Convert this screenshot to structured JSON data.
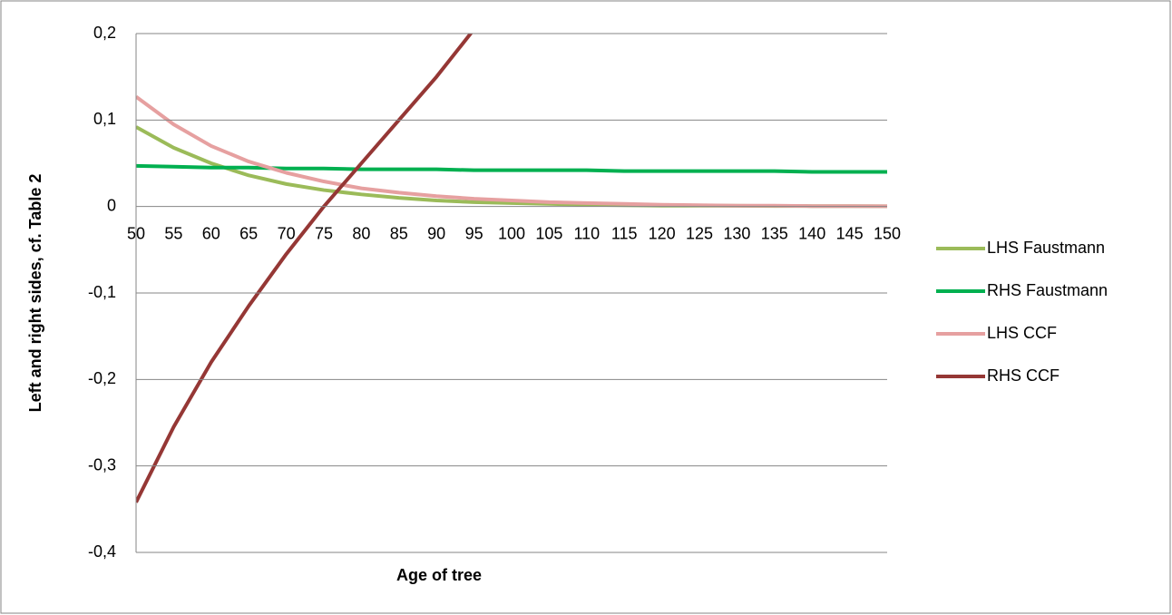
{
  "chart_data": {
    "type": "line",
    "x_label": "Age of tree",
    "y_label": "Left and right sides, cf. Table 2",
    "categories": [
      "50",
      "55",
      "60",
      "65",
      "70",
      "75",
      "80",
      "85",
      "90",
      "95",
      "100",
      "105",
      "110",
      "115",
      "120",
      "125",
      "130",
      "135",
      "140",
      "145",
      "150"
    ],
    "series": [
      {
        "name": "LHS Faustmann",
        "color": "#9bbb59",
        "values": [
          0.092,
          0.068,
          0.05,
          0.036,
          0.026,
          0.019,
          0.014,
          0.01,
          0.007,
          0.005,
          0.004,
          0.003,
          0.002,
          0.0015,
          0.001,
          0.001,
          0.0008,
          0.0006,
          0.0005,
          0.0004,
          0.0003
        ]
      },
      {
        "name": "RHS Faustmann",
        "color": "#00b050",
        "values": [
          0.047,
          0.046,
          0.045,
          0.045,
          0.044,
          0.044,
          0.043,
          0.043,
          0.043,
          0.042,
          0.042,
          0.042,
          0.042,
          0.041,
          0.041,
          0.041,
          0.041,
          0.041,
          0.04,
          0.04,
          0.04
        ]
      },
      {
        "name": "LHS CCF",
        "color": "#e6a0a0",
        "values": [
          0.127,
          0.095,
          0.07,
          0.052,
          0.039,
          0.029,
          0.021,
          0.016,
          0.012,
          0.009,
          0.007,
          0.005,
          0.004,
          0.003,
          0.002,
          0.0015,
          0.001,
          0.001,
          0.0005,
          0.0005,
          0.0003
        ]
      },
      {
        "name": "RHS CCF",
        "color": "#953735",
        "values": [
          -0.342,
          -0.255,
          -0.18,
          -0.115,
          -0.055,
          0.0,
          0.05,
          0.1,
          0.15,
          0.205,
          null,
          null,
          null,
          null,
          null,
          null,
          null,
          null,
          null,
          null,
          null
        ]
      }
    ],
    "ylim": [
      -0.4,
      0.2
    ],
    "yticks": [
      {
        "value": -0.4,
        "label": "-0,4"
      },
      {
        "value": -0.3,
        "label": "-0,3"
      },
      {
        "value": -0.2,
        "label": "-0,2"
      },
      {
        "value": -0.1,
        "label": "-0,1"
      },
      0,
      {
        "value": 0.1,
        "label": "0,1"
      },
      {
        "value": 0.2,
        "label": "0,2"
      }
    ],
    "grid": true,
    "legend": "right"
  }
}
